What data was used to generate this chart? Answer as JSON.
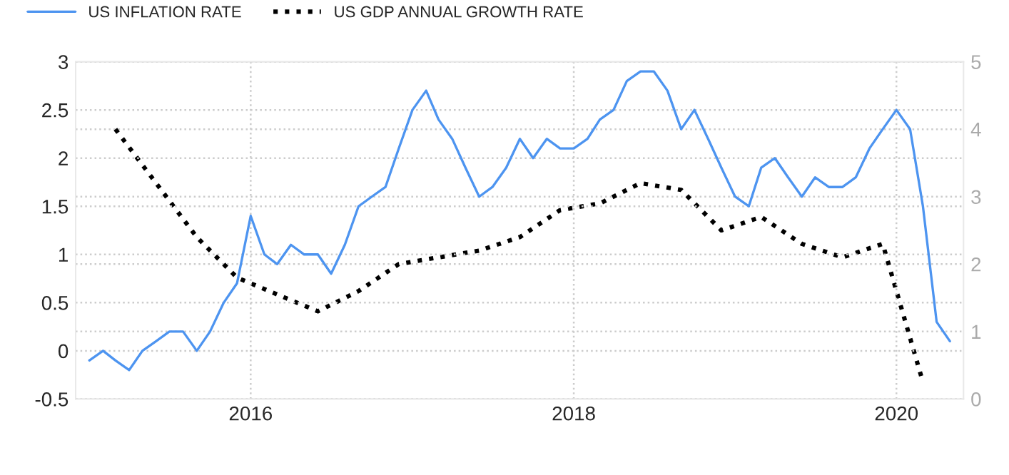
{
  "chart_data": {
    "type": "line",
    "x": [
      "2015-01",
      "2015-02",
      "2015-03",
      "2015-04",
      "2015-05",
      "2015-06",
      "2015-07",
      "2015-08",
      "2015-09",
      "2015-10",
      "2015-11",
      "2015-12",
      "2016-01",
      "2016-02",
      "2016-03",
      "2016-04",
      "2016-05",
      "2016-06",
      "2016-07",
      "2016-08",
      "2016-09",
      "2016-10",
      "2016-11",
      "2016-12",
      "2017-01",
      "2017-02",
      "2017-03",
      "2017-04",
      "2017-05",
      "2017-06",
      "2017-07",
      "2017-08",
      "2017-09",
      "2017-10",
      "2017-11",
      "2017-12",
      "2018-01",
      "2018-02",
      "2018-03",
      "2018-04",
      "2018-05",
      "2018-06",
      "2018-07",
      "2018-08",
      "2018-09",
      "2018-10",
      "2018-11",
      "2018-12",
      "2019-01",
      "2019-02",
      "2019-03",
      "2019-04",
      "2019-05",
      "2019-06",
      "2019-07",
      "2019-08",
      "2019-09",
      "2019-10",
      "2019-11",
      "2019-12",
      "2020-01",
      "2020-02",
      "2020-03",
      "2020-04",
      "2020-05"
    ],
    "series": [
      {
        "name": "US INFLATION RATE",
        "color": "#4d94f0",
        "line_style": "solid",
        "values": [
          -0.1,
          0.0,
          -0.1,
          -0.2,
          0.0,
          0.1,
          0.2,
          0.2,
          0.0,
          0.2,
          0.5,
          0.7,
          1.4,
          1.0,
          0.9,
          1.1,
          1.0,
          1.0,
          0.8,
          1.1,
          1.5,
          1.6,
          1.7,
          2.1,
          2.5,
          2.7,
          2.4,
          2.2,
          1.9,
          1.6,
          1.7,
          1.9,
          2.2,
          2.0,
          2.2,
          2.1,
          2.1,
          2.2,
          2.4,
          2.5,
          2.8,
          2.9,
          2.9,
          2.7,
          2.3,
          2.5,
          2.2,
          1.9,
          1.6,
          1.5,
          1.9,
          2.0,
          1.8,
          1.6,
          1.8,
          1.7,
          1.7,
          1.8,
          2.1,
          2.3,
          2.5,
          2.3,
          1.5,
          0.3,
          0.1
        ]
      },
      {
        "name": "US GDP ANNUAL GROWTH RATE",
        "color": "#000000",
        "line_style": "dotted",
        "axis": "y2",
        "x": [
          "2015-03",
          "2015-06",
          "2015-09",
          "2015-12",
          "2016-03",
          "2016-06",
          "2016-09",
          "2016-12",
          "2017-03",
          "2017-06",
          "2017-09",
          "2017-12",
          "2018-03",
          "2018-06",
          "2018-09",
          "2018-12",
          "2019-03",
          "2019-06",
          "2019-09",
          "2019-12",
          "2020-03"
        ],
        "values": [
          4.0,
          3.2,
          2.4,
          1.8,
          1.55,
          1.3,
          1.6,
          2.0,
          2.1,
          2.2,
          2.4,
          2.8,
          2.9,
          3.2,
          3.1,
          2.5,
          2.7,
          2.3,
          2.1,
          2.3,
          0.25
        ]
      }
    ],
    "xlim": [
      "2014-12",
      "2020-06"
    ],
    "xticks": [
      {
        "value": "2016-01",
        "label": "2016"
      },
      {
        "value": "2018-01",
        "label": "2018"
      },
      {
        "value": "2020-01",
        "label": "2020"
      }
    ],
    "ylim": [
      -0.5,
      3
    ],
    "yticks": [
      -0.5,
      0,
      0.5,
      1,
      1.5,
      2,
      2.5,
      3
    ],
    "y2lim": [
      0,
      5
    ],
    "y2ticks": [
      0,
      1,
      2,
      3,
      4,
      5
    ],
    "grid": true,
    "legend": "top left"
  }
}
